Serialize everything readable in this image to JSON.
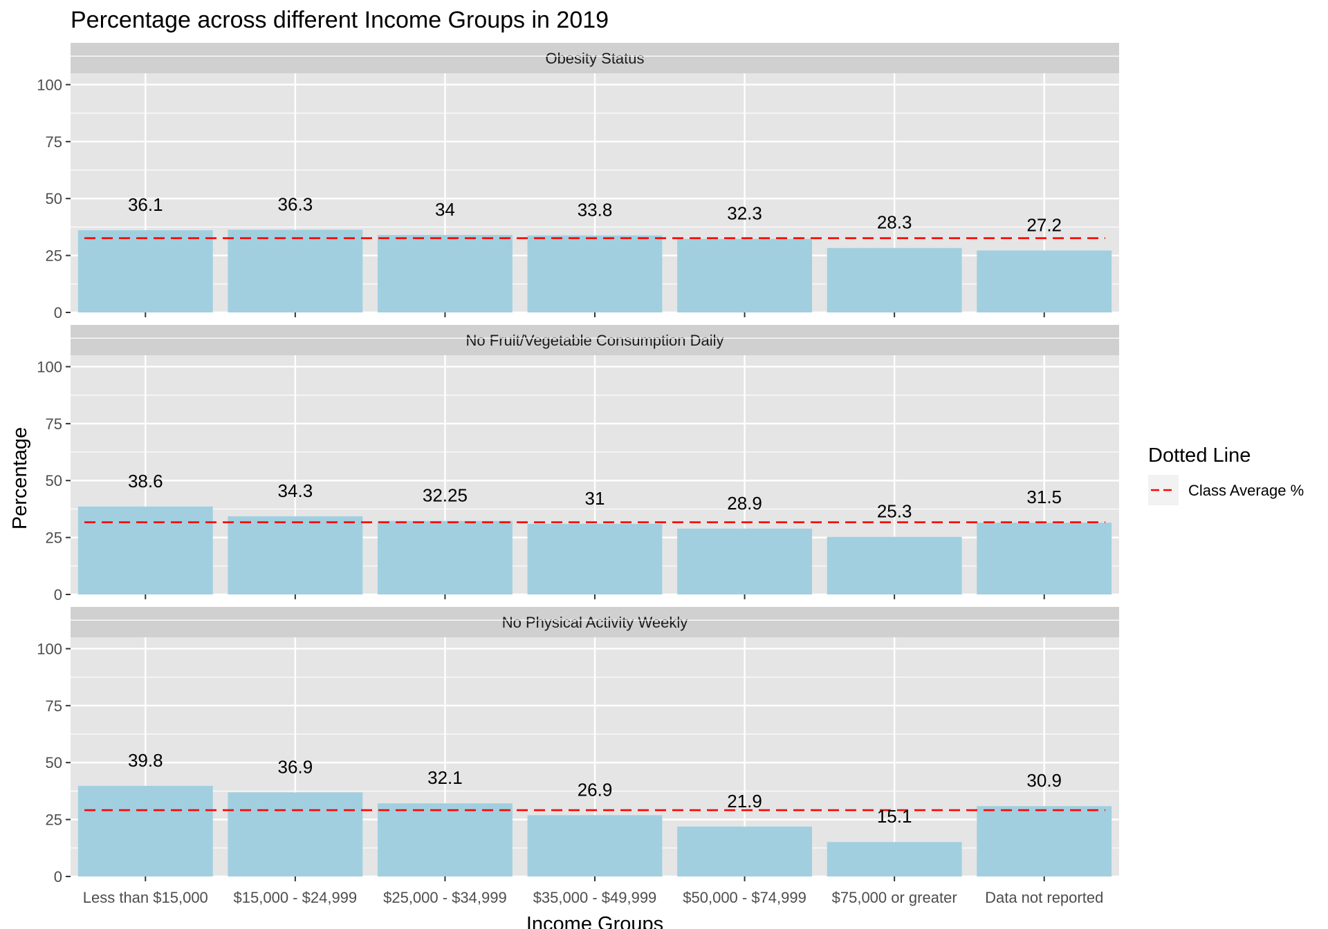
{
  "chart_data": {
    "type": "bar",
    "title": "Percentage across different Income Groups in 2019",
    "xlabel": "Income Groups",
    "ylabel": "Percentage",
    "ylim": [
      0,
      105
    ],
    "yticks": [
      0,
      25,
      50,
      75,
      100
    ],
    "categories": [
      "Less than $15,000",
      "$15,000 - $24,999",
      "$25,000 - $34,999",
      "$35,000 - $49,999",
      "$50,000 - $74,999",
      "$75,000 or greater",
      "Data not reported"
    ],
    "panels": [
      {
        "name": "Obesity Status",
        "values": [
          36.1,
          36.3,
          34,
          33.8,
          32.3,
          28.3,
          27.2
        ],
        "labels": [
          "36.1",
          "36.3",
          "34",
          "33.8",
          "32.3",
          "28.3",
          "27.2"
        ],
        "class_average": 32.6
      },
      {
        "name": "No Fruit/Vegetable Consumption Daily",
        "values": [
          38.6,
          34.3,
          32.25,
          31,
          28.9,
          25.3,
          31.5
        ],
        "labels": [
          "38.6",
          "34.3",
          "32.25",
          "31",
          "28.9",
          "25.3",
          "31.5"
        ],
        "class_average": 31.7
      },
      {
        "name": "No Physical Activity Weekly",
        "values": [
          39.8,
          36.9,
          32.1,
          26.9,
          21.9,
          15.1,
          30.9
        ],
        "labels": [
          "39.8",
          "36.9",
          "32.1",
          "26.9",
          "21.9",
          "15.1",
          "30.9"
        ],
        "class_average": 29.1
      }
    ],
    "legend": {
      "title": "Dotted Line",
      "items": [
        {
          "label": "Class Average %",
          "color": "#ff0000",
          "style": "dashed"
        }
      ],
      "position": "right"
    },
    "grid": true,
    "colors": {
      "bar": "#a1cfdf",
      "panel_bg": "#e5e5e5",
      "strip_bg": "#d0d0d0",
      "grid": "#ffffff",
      "average_line": "#ff0000"
    }
  }
}
